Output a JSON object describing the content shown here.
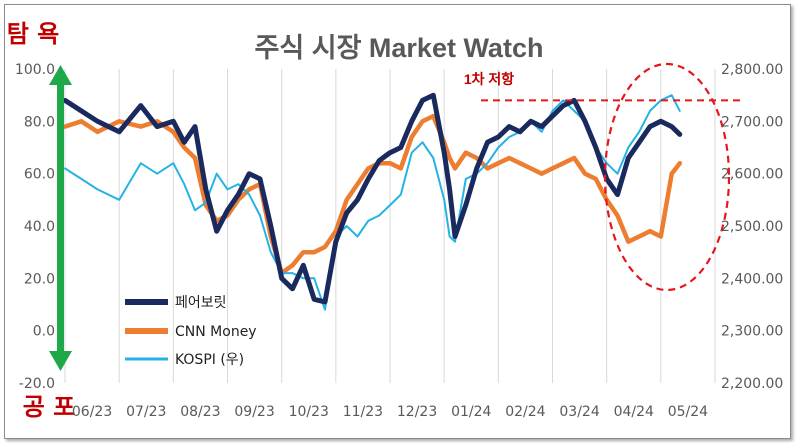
{
  "labels": {
    "greed": "탐 욕",
    "fear": "공 포",
    "resistance": "1차 저항"
  },
  "chart_data": {
    "type": "line",
    "title": "주식 시장 Market Watch",
    "x_months": [
      "06/23",
      "07/23",
      "08/23",
      "09/23",
      "10/23",
      "11/23",
      "12/23",
      "01/24",
      "02/24",
      "03/24",
      "04/24",
      "05/24"
    ],
    "y_left": {
      "ylim": [
        -20,
        100
      ],
      "ticks": [
        "100.0",
        "80.0",
        "60.0",
        "40.0",
        "20.0",
        "0.0",
        "-20.0"
      ]
    },
    "y_right": {
      "ylim": [
        2200,
        2800
      ],
      "ticks": [
        "2,800.00",
        "2,700.00",
        "2,600.00",
        "2,500.00",
        "2,400.00",
        "2,300.00",
        "2,200.00"
      ]
    },
    "resistance_level": 2740,
    "legend_position": "bottom-left",
    "grid": "vertical",
    "series": [
      {
        "name": "페어보릿",
        "axis": "left",
        "color": "#1b2a5e",
        "t": [
          0,
          0.3,
          0.6,
          1.0,
          1.4,
          1.7,
          2.0,
          2.2,
          2.4,
          2.6,
          2.8,
          3.0,
          3.2,
          3.4,
          3.6,
          3.8,
          4.0,
          4.2,
          4.4,
          4.6,
          4.8,
          5.0,
          5.2,
          5.4,
          5.6,
          5.8,
          6.0,
          6.2,
          6.4,
          6.6,
          6.8,
          7.0,
          7.1,
          7.2,
          7.4,
          7.6,
          7.8,
          8.0,
          8.2,
          8.4,
          8.6,
          8.8,
          9.0,
          9.2,
          9.4,
          9.6,
          9.8,
          10.0,
          10.2,
          10.4,
          10.6,
          10.8,
          11.0,
          11.2,
          11.35
        ],
        "values": [
          88,
          84,
          80,
          76,
          86,
          78,
          80,
          72,
          78,
          54,
          38,
          46,
          52,
          60,
          58,
          40,
          20,
          16,
          25,
          12,
          11,
          34,
          45,
          50,
          58,
          65,
          68,
          70,
          80,
          88,
          90,
          68,
          54,
          36,
          48,
          62,
          72,
          74,
          78,
          76,
          80,
          78,
          82,
          86,
          88,
          80,
          70,
          58,
          52,
          66,
          72,
          78,
          80,
          78,
          75
        ]
      },
      {
        "name": "CNN Money",
        "axis": "left",
        "color": "#ed7d31",
        "t": [
          0,
          0.3,
          0.6,
          1.0,
          1.4,
          1.7,
          2.0,
          2.2,
          2.4,
          2.6,
          2.8,
          3.0,
          3.2,
          3.4,
          3.6,
          3.8,
          4.0,
          4.2,
          4.4,
          4.6,
          4.8,
          5.0,
          5.2,
          5.4,
          5.6,
          5.8,
          6.0,
          6.2,
          6.4,
          6.6,
          6.8,
          7.0,
          7.1,
          7.2,
          7.4,
          7.6,
          7.8,
          8.0,
          8.2,
          8.4,
          8.6,
          8.8,
          9.0,
          9.2,
          9.4,
          9.6,
          9.8,
          10.0,
          10.2,
          10.4,
          10.6,
          10.8,
          11.0,
          11.2,
          11.35
        ],
        "values": [
          78,
          80,
          76,
          80,
          78,
          80,
          76,
          70,
          66,
          48,
          42,
          44,
          50,
          54,
          56,
          36,
          22,
          25,
          30,
          30,
          32,
          38,
          50,
          56,
          62,
          64,
          64,
          62,
          74,
          80,
          82,
          72,
          66,
          62,
          68,
          66,
          62,
          64,
          66,
          64,
          62,
          60,
          62,
          64,
          66,
          60,
          58,
          50,
          44,
          34,
          36,
          38,
          36,
          60,
          64
        ]
      },
      {
        "name": "KOSPI (우)",
        "axis": "right",
        "color": "#25b3e6",
        "t": [
          0,
          0.3,
          0.6,
          1.0,
          1.4,
          1.7,
          2.0,
          2.2,
          2.4,
          2.6,
          2.8,
          3.0,
          3.2,
          3.4,
          3.6,
          3.8,
          4.0,
          4.2,
          4.4,
          4.6,
          4.8,
          5.0,
          5.2,
          5.4,
          5.6,
          5.8,
          6.0,
          6.2,
          6.4,
          6.6,
          6.8,
          7.0,
          7.1,
          7.2,
          7.4,
          7.6,
          7.8,
          8.0,
          8.2,
          8.4,
          8.6,
          8.8,
          9.0,
          9.2,
          9.4,
          9.6,
          9.8,
          10.0,
          10.2,
          10.4,
          10.6,
          10.8,
          11.0,
          11.2,
          11.35
        ],
        "values": [
          2610,
          2590,
          2570,
          2550,
          2620,
          2600,
          2620,
          2580,
          2530,
          2545,
          2600,
          2570,
          2580,
          2560,
          2520,
          2450,
          2410,
          2410,
          2400,
          2400,
          2340,
          2480,
          2500,
          2480,
          2510,
          2520,
          2540,
          2560,
          2640,
          2660,
          2630,
          2550,
          2480,
          2470,
          2590,
          2600,
          2620,
          2650,
          2670,
          2680,
          2700,
          2680,
          2720,
          2740,
          2720,
          2700,
          2650,
          2620,
          2600,
          2650,
          2680,
          2720,
          2740,
          2750,
          2720
        ]
      }
    ]
  }
}
